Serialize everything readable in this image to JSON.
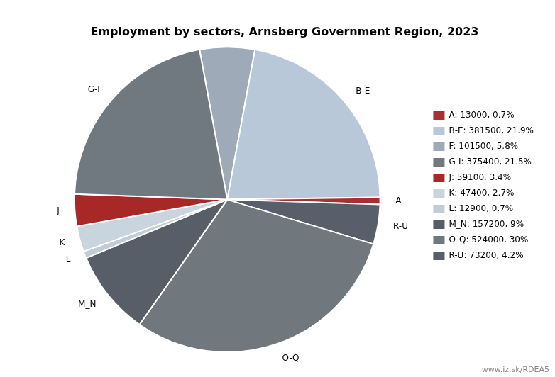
{
  "chart_data": {
    "type": "pie",
    "title": "Employment by sectors, Arnsberg Government Region, 2023",
    "categories": [
      "F",
      "B-E",
      "A",
      "R-U",
      "O-Q",
      "M_N",
      "L",
      "K",
      "J",
      "G-I"
    ],
    "values": [
      101500,
      381500,
      13000,
      73200,
      524000,
      157200,
      12900,
      47400,
      59100,
      375400
    ],
    "colors": [
      "#9eaab8",
      "#b8c8d8",
      "#a83030",
      "#585e6a",
      "#70787e",
      "#585e68",
      "#c0ccd6",
      "#c8d4de",
      "#a82828",
      "#707880"
    ],
    "legend": "right",
    "legend_entries": [
      {
        "name": "A: 13000, 0.7%",
        "color": "#a83030"
      },
      {
        "name": "B-E: 381500, 21.9%",
        "color": "#b8c8d8"
      },
      {
        "name": "F: 101500, 5.8%",
        "color": "#9eaab8"
      },
      {
        "name": "G-I: 375400, 21.5%",
        "color": "#707880"
      },
      {
        "name": "J: 59100, 3.4%",
        "color": "#a82828"
      },
      {
        "name": "K: 47400, 2.7%",
        "color": "#c8d4de"
      },
      {
        "name": "L: 12900, 0.7%",
        "color": "#c0ccd6"
      },
      {
        "name": "M_N: 157200, 9%",
        "color": "#585e68"
      },
      {
        "name": "O-Q: 524000, 30%",
        "color": "#70787e"
      },
      {
        "name": "R-U: 73200, 4.2%",
        "color": "#585e6a"
      }
    ],
    "annotations": [
      "www.iz.sk/RDEA5"
    ]
  }
}
